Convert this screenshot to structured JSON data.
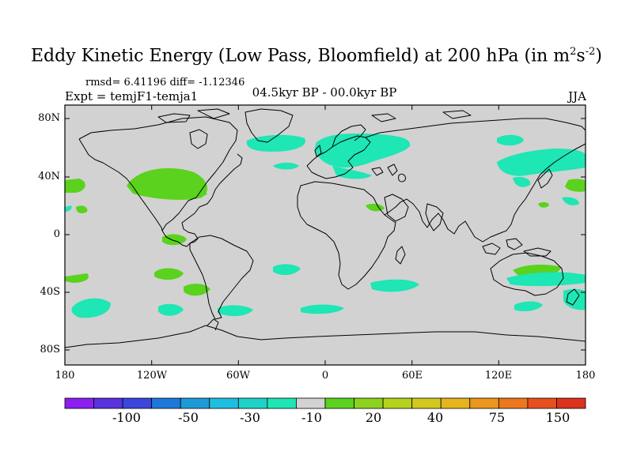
{
  "title": {
    "main": "Eddy Kinetic Energy (Low Pass, Bloomfield) at 200 hPa (in m",
    "sup1": "2",
    "mid": "s",
    "sup2": "-2",
    "end": ")"
  },
  "stats": "rmsd= 6.41196 diff= -1.12346",
  "experiment": "Expt = temjF1-temja1",
  "period": "04.5kyr BP - 00.0kyr BP",
  "season": "JJA",
  "lat_labels": [
    "80N",
    "40N",
    "0",
    "40S",
    "80S"
  ],
  "lon_labels": [
    "180",
    "120W",
    "60W",
    "0",
    "60E",
    "120E",
    "180"
  ],
  "colorbar": {
    "colors": [
      "#8c1ef0",
      "#5a32dc",
      "#3c46dc",
      "#1e78dc",
      "#1e9bd7",
      "#1ebee1",
      "#1ed2c8",
      "#1ee6b4",
      "#d2d2d2",
      "#5ad21e",
      "#8cd21e",
      "#b4d21e",
      "#d2c81e",
      "#e6b41e",
      "#eb961e",
      "#eb781e",
      "#e6501e",
      "#dc321e"
    ],
    "labels": [
      "-100",
      "-50",
      "-30",
      "-10",
      "20",
      "40",
      "75",
      "150"
    ]
  },
  "colors": {
    "background": "#d2d2d2",
    "positive": "#5ad21e",
    "negative": "#1ee6b4",
    "coast": "#000000"
  }
}
